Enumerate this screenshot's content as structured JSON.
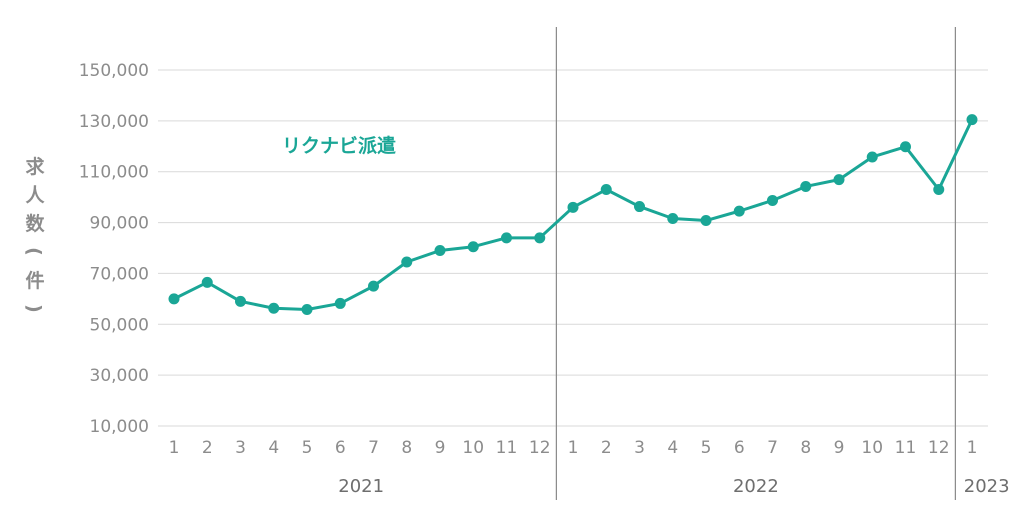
{
  "chart_data": {
    "type": "line",
    "ylabel": "求人数(件)",
    "ylim": [
      10000,
      160000
    ],
    "yticks": [
      "150,000",
      "130,000",
      "110,000",
      "90,000",
      "70,000",
      "50,000",
      "30,000",
      "10,000"
    ],
    "ytick_values": [
      150000,
      130000,
      110000,
      90000,
      70000,
      50000,
      30000,
      10000
    ],
    "x_month_labels": [
      "1",
      "2",
      "3",
      "4",
      "5",
      "6",
      "7",
      "8",
      "9",
      "10",
      "11",
      "12",
      "1",
      "2",
      "3",
      "4",
      "5",
      "6",
      "7",
      "8",
      "9",
      "10",
      "11",
      "12",
      "1"
    ],
    "years": [
      {
        "label": "2021",
        "start": 0,
        "end": 11
      },
      {
        "label": "2022",
        "start": 12,
        "end": 23
      },
      {
        "label": "2023",
        "start": 24,
        "end": 24
      }
    ],
    "grid": true,
    "series": [
      {
        "name": "リクナビ派遣",
        "color": "#1aa696",
        "values": [
          60000,
          66500,
          59000,
          56300,
          55800,
          58200,
          65000,
          74500,
          79000,
          80500,
          84000,
          84000,
          96000,
          103000,
          96300,
          91600,
          90800,
          94500,
          98700,
          104200,
          106900,
          115800,
          119800,
          103000,
          130500
        ]
      }
    ]
  }
}
